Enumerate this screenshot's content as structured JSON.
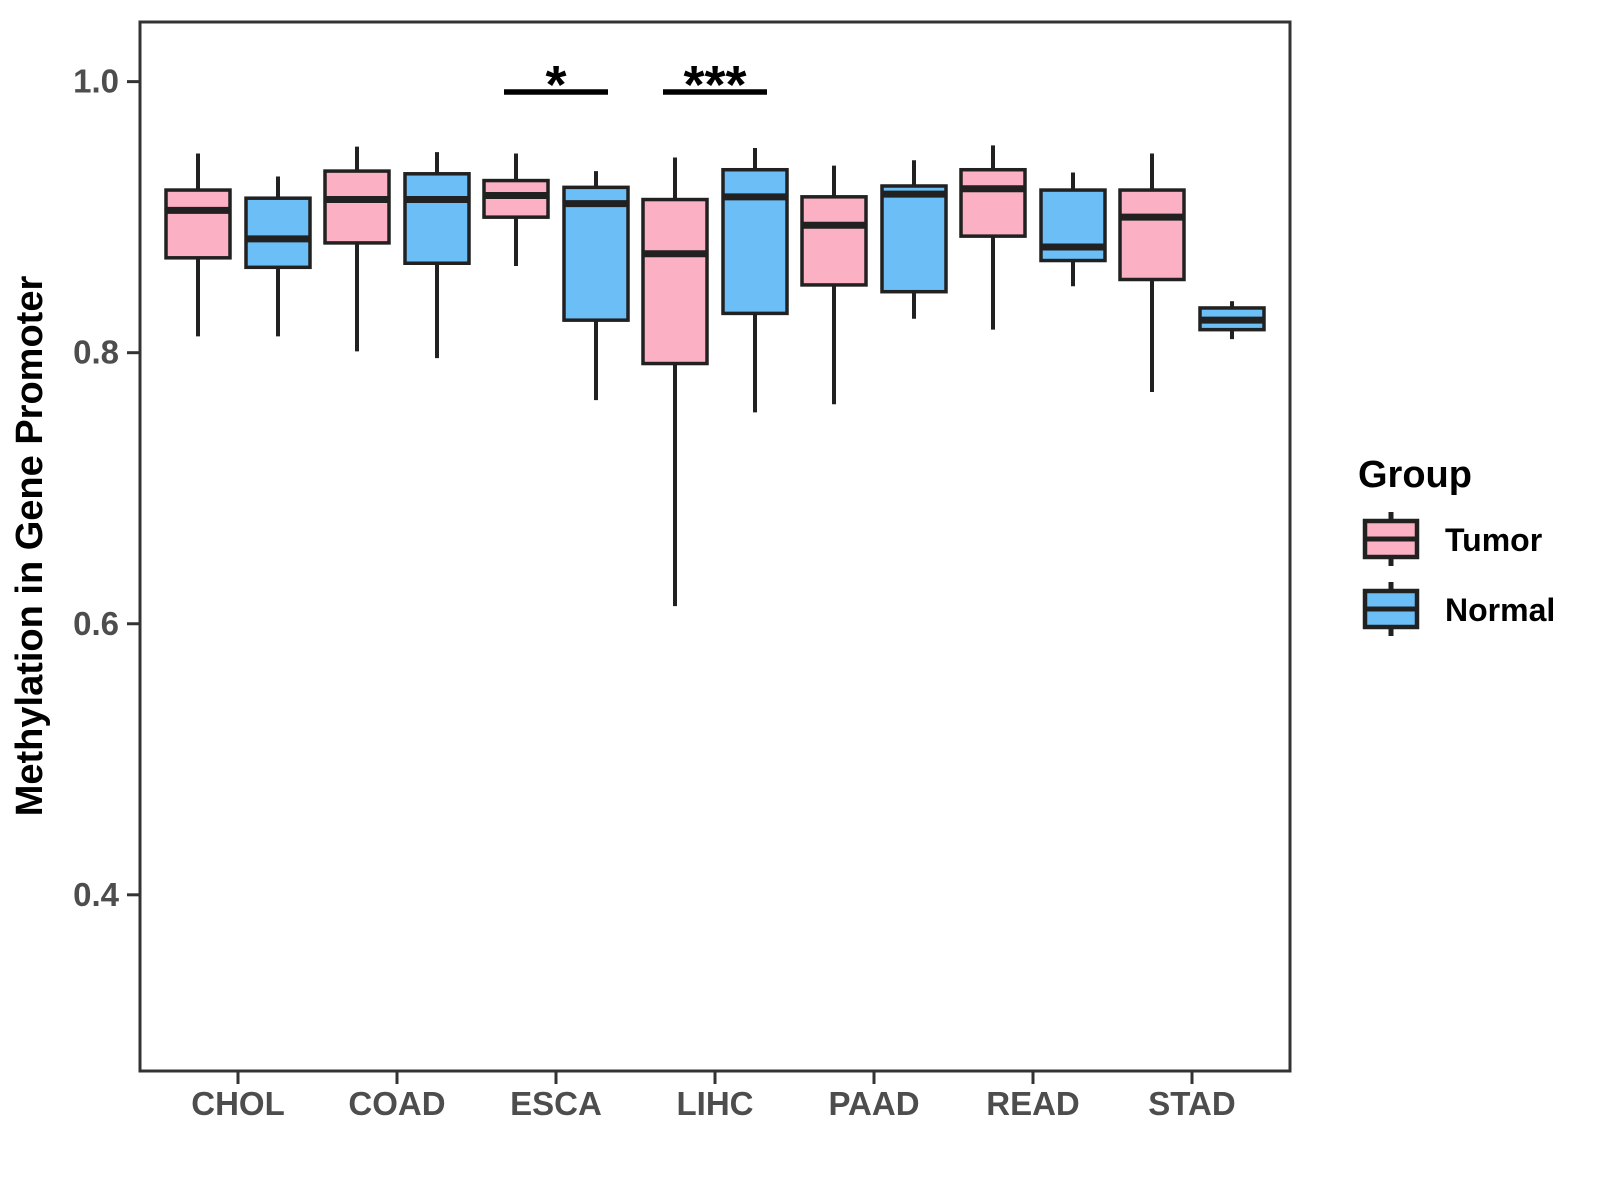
{
  "figure": {
    "background": "#ffffff"
  },
  "chart_data": {
    "type": "boxplot",
    "title": "",
    "xlabel": "",
    "ylabel": "Methylation in Gene Promoter",
    "categories": [
      "CHOL",
      "COAD",
      "ESCA",
      "LIHC",
      "PAAD",
      "READ",
      "STAD"
    ],
    "y_axis": {
      "range": [
        0.27,
        1.044
      ],
      "ticks": [
        {
          "value": 1.0,
          "label": "1.0"
        },
        {
          "value": 0.8,
          "label": "0.8"
        },
        {
          "value": 0.6,
          "label": "0.6"
        },
        {
          "value": 0.4,
          "label": "0.4"
        }
      ]
    },
    "legend": {
      "title": "Group",
      "position": "right"
    },
    "groups": [
      {
        "name": "Tumor",
        "color": "#FBB1C3"
      },
      {
        "name": "Normal",
        "color": "#6CBEF7"
      }
    ],
    "series": [
      {
        "name": "Tumor",
        "boxes": [
          {
            "category": "CHOL",
            "min": 0.812,
            "q1": 0.87,
            "median": 0.905,
            "q3": 0.92,
            "max": 0.947
          },
          {
            "category": "COAD",
            "min": 0.801,
            "q1": 0.881,
            "median": 0.913,
            "q3": 0.934,
            "max": 0.952
          },
          {
            "category": "ESCA",
            "min": 0.864,
            "q1": 0.9,
            "median": 0.916,
            "q3": 0.927,
            "max": 0.947
          },
          {
            "category": "LIHC",
            "min": 0.613,
            "q1": 0.792,
            "median": 0.873,
            "q3": 0.913,
            "max": 0.944
          },
          {
            "category": "PAAD",
            "min": 0.762,
            "q1": 0.85,
            "median": 0.894,
            "q3": 0.915,
            "max": 0.938
          },
          {
            "category": "READ",
            "min": 0.817,
            "q1": 0.886,
            "median": 0.921,
            "q3": 0.935,
            "max": 0.953
          },
          {
            "category": "STAD",
            "min": 0.771,
            "q1": 0.854,
            "median": 0.9,
            "q3": 0.92,
            "max": 0.947
          }
        ]
      },
      {
        "name": "Normal",
        "boxes": [
          {
            "category": "CHOL",
            "min": 0.812,
            "q1": 0.863,
            "median": 0.884,
            "q3": 0.914,
            "max": 0.93
          },
          {
            "category": "COAD",
            "min": 0.796,
            "q1": 0.866,
            "median": 0.913,
            "q3": 0.932,
            "max": 0.948
          },
          {
            "category": "ESCA",
            "min": 0.765,
            "q1": 0.824,
            "median": 0.91,
            "q3": 0.922,
            "max": 0.934
          },
          {
            "category": "LIHC",
            "min": 0.756,
            "q1": 0.829,
            "median": 0.915,
            "q3": 0.935,
            "max": 0.951
          },
          {
            "category": "PAAD",
            "min": 0.825,
            "q1": 0.845,
            "median": 0.917,
            "q3": 0.923,
            "max": 0.942
          },
          {
            "category": "READ",
            "min": 0.849,
            "q1": 0.868,
            "median": 0.878,
            "q3": 0.92,
            "max": 0.933
          },
          {
            "category": "STAD",
            "min": 0.81,
            "q1": 0.817,
            "median": 0.824,
            "q3": 0.833,
            "max": 0.838
          }
        ]
      }
    ],
    "annotations": [
      {
        "category": "ESCA",
        "label": "*"
      },
      {
        "category": "LIHC",
        "label": "***"
      }
    ],
    "style": {
      "box_border_color": "#212121",
      "axis_color": "#333333",
      "tick_label_color": "#4d4d4d",
      "significance_color": "#000000",
      "grid": "off"
    }
  }
}
